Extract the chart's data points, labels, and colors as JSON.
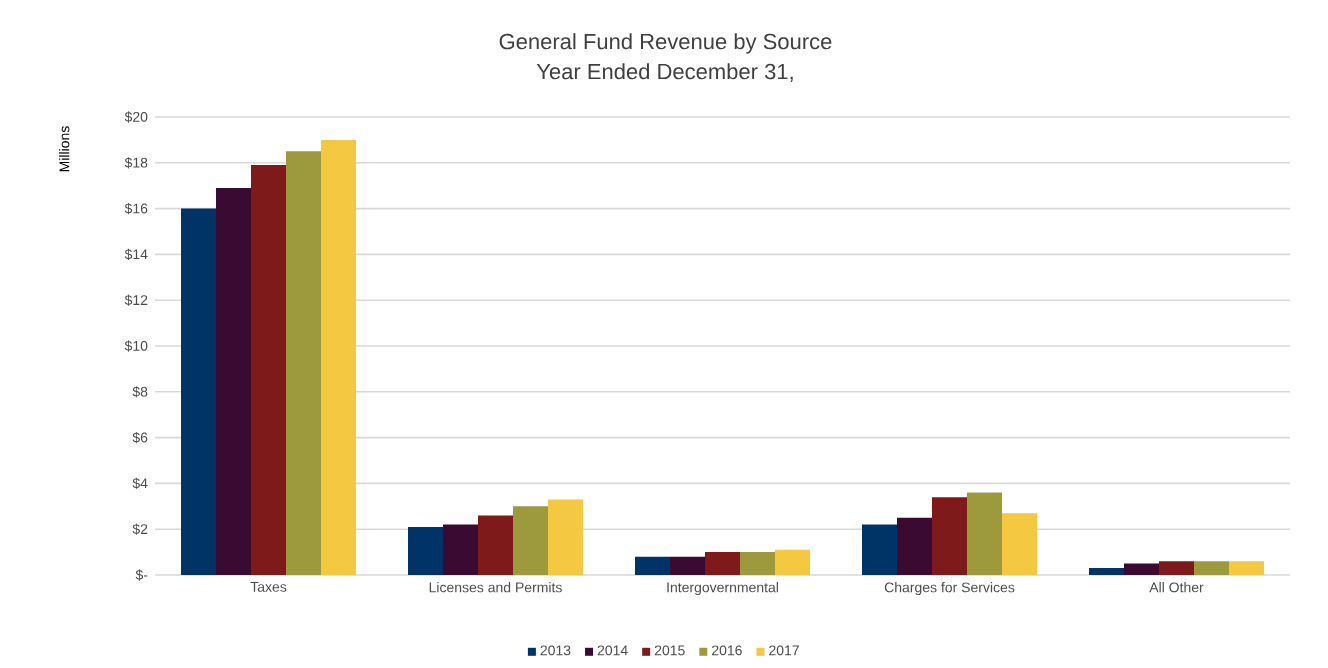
{
  "chart_data": {
    "type": "bar",
    "title": "General Fund Revenue by Source",
    "subtitle": "Year Ended December 31,",
    "ylabel": "Millions",
    "categories": [
      "Taxes",
      "Licenses and Permits",
      "Intergovernmental",
      "Charges for Services",
      "All Other"
    ],
    "series": [
      {
        "name": "2013",
        "color": "#003366",
        "values": [
          16.0,
          2.1,
          0.8,
          2.2,
          0.3
        ]
      },
      {
        "name": "2014",
        "color": "#3b0a33",
        "values": [
          16.9,
          2.2,
          0.8,
          2.5,
          0.5
        ]
      },
      {
        "name": "2015",
        "color": "#7f1a1a",
        "values": [
          17.9,
          2.6,
          1.0,
          3.4,
          0.6
        ]
      },
      {
        "name": "2016",
        "color": "#9c9a3c",
        "values": [
          18.5,
          3.0,
          1.0,
          3.6,
          0.6
        ]
      },
      {
        "name": "2017",
        "color": "#f5c842",
        "values": [
          19.0,
          3.3,
          1.1,
          2.7,
          0.6
        ]
      }
    ],
    "ylim": [
      0,
      20
    ],
    "yticks": [
      {
        "value": 0,
        "label": "$-"
      },
      {
        "value": 2,
        "label": "$2"
      },
      {
        "value": 4,
        "label": "$4"
      },
      {
        "value": 6,
        "label": "$6"
      },
      {
        "value": 8,
        "label": "$8"
      },
      {
        "value": 10,
        "label": "$10"
      },
      {
        "value": 12,
        "label": "$12"
      },
      {
        "value": 14,
        "label": "$14"
      },
      {
        "value": 16,
        "label": "$16"
      },
      {
        "value": 18,
        "label": "$18"
      },
      {
        "value": 20,
        "label": "$20"
      }
    ],
    "grid": "y",
    "legend": "bottom"
  }
}
